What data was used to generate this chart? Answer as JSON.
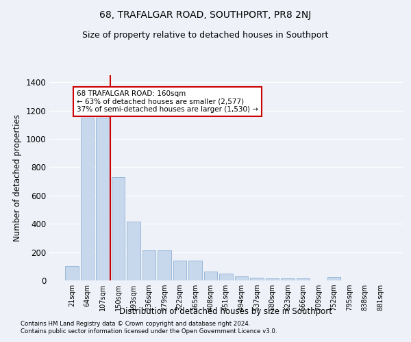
{
  "title": "68, TRAFALGAR ROAD, SOUTHPORT, PR8 2NJ",
  "subtitle": "Size of property relative to detached houses in Southport",
  "xlabel": "Distribution of detached houses by size in Southport",
  "ylabel": "Number of detached properties",
  "categories": [
    "21sqm",
    "64sqm",
    "107sqm",
    "150sqm",
    "193sqm",
    "236sqm",
    "279sqm",
    "322sqm",
    "365sqm",
    "408sqm",
    "451sqm",
    "494sqm",
    "537sqm",
    "580sqm",
    "623sqm",
    "666sqm",
    "709sqm",
    "752sqm",
    "795sqm",
    "838sqm",
    "881sqm"
  ],
  "values": [
    100,
    1150,
    1150,
    730,
    415,
    215,
    215,
    140,
    140,
    65,
    50,
    30,
    20,
    15,
    15,
    15,
    0,
    25,
    0,
    0,
    0
  ],
  "bar_color": "#c8d8ec",
  "bar_edge_color": "#99b8d8",
  "vline_color": "#cc0000",
  "vline_x": 3.5,
  "ylim": [
    0,
    1450
  ],
  "yticks": [
    0,
    200,
    400,
    600,
    800,
    1000,
    1200,
    1400
  ],
  "annotation_line1": "68 TRAFALGAR ROAD: 160sqm",
  "annotation_line2": "← 63% of detached houses are smaller (2,577)",
  "annotation_line3": "37% of semi-detached houses are larger (1,530) →",
  "annotation_box_facecolor": "#ffffff",
  "annotation_box_edgecolor": "#cc0000",
  "footer_line1": "Contains HM Land Registry data © Crown copyright and database right 2024.",
  "footer_line2": "Contains public sector information licensed under the Open Government Licence v3.0.",
  "background_color": "#eef2f8",
  "grid_color": "#ffffff",
  "title_fontsize": 10,
  "subtitle_fontsize": 9
}
